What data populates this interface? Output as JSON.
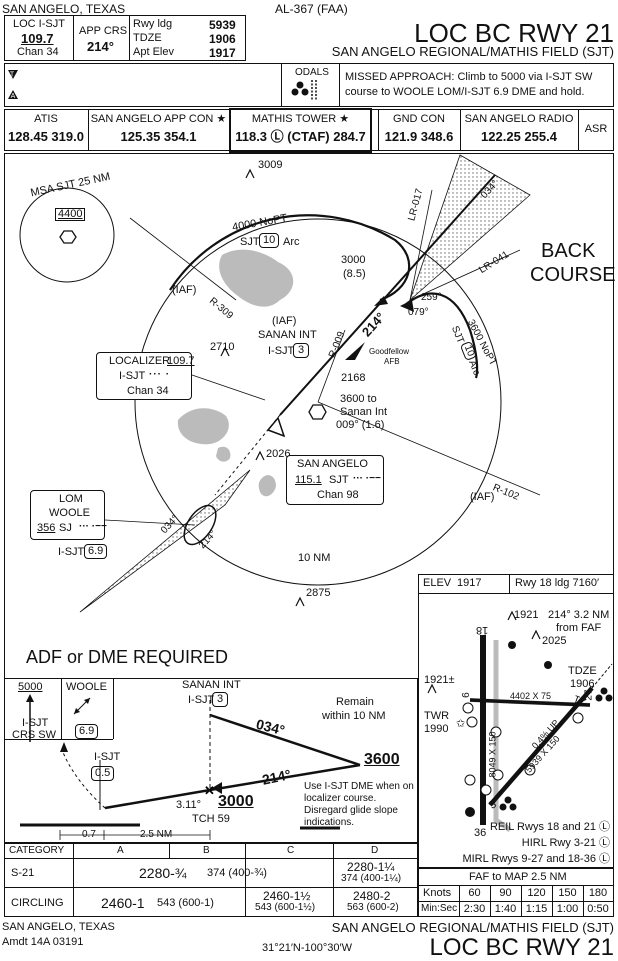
{
  "header": {
    "location": "SAN ANGELO, TEXAS",
    "chart_id": "AL-367 (FAA)",
    "title": "LOC BC RWY 21",
    "airport": "SAN ANGELO REGIONAL/MATHIS FIELD (SJT)"
  },
  "info_box": {
    "loc_label": "LOC I-SJT",
    "loc_freq": "109.7",
    "chan": "Chan 34",
    "app_crs_label": "APP CRS",
    "app_crs": "214°",
    "rwy_ldg_label": "Rwy ldg",
    "rwy_ldg": "5939",
    "tdze_label": "TDZE",
    "tdze": "1906",
    "apt_elev_label": "Apt Elev",
    "apt_elev": "1917"
  },
  "odals": "ODALS",
  "missed_approach": "MISSED APPROACH: Climb to 5000 via I-SJT SW course to WOOLE LOM/I-SJT 6.9 DME and hold.",
  "comms": [
    {
      "label": "ATIS",
      "value": "128.45  319.0"
    },
    {
      "label": "SAN ANGELO APP CON ★",
      "value": "125.35  354.1"
    },
    {
      "label": "MATHIS TOWER ★",
      "value": "118.3 Ⓛ (CTAF) 284.7"
    },
    {
      "label": "GND CON",
      "value": "121.9  348.6"
    },
    {
      "label": "SAN ANGELO RADIO",
      "value": "122.25  255.4"
    },
    {
      "label": "ASR",
      "value": ""
    }
  ],
  "plan": {
    "msa": "MSA SJT 25 NM",
    "msa_alt": "4400",
    "back_course": [
      "BACK",
      "COURSE"
    ],
    "obst_3009": "3009",
    "arc_nopt": "4000 NoPT",
    "arc_label_sjt": "SJT",
    "arc_label_dme": "10",
    "arc_label_arc": "Arc",
    "alt_3000": "3000",
    "dist_85": "(8.5)",
    "lr017": "LR-017",
    "lr041": "LR-041",
    "crs_034": "034°",
    "crs_259": "259°",
    "crs_079": "079°",
    "arc2_alt": "3600 NoPT",
    "arc2_sjt": "SJT",
    "arc2_dme": "10",
    "arc2_arc": "Arc",
    "iaf1": "(IAF)",
    "iaf2": "(IAF)",
    "iaf3": "(IAF)",
    "r309": "R-309",
    "r009": "R-009",
    "r102": "R-102",
    "crs_214": "214°",
    "sanan_int": "SANAN INT",
    "sanan_isjt": "I-SJT",
    "sanan_dme": "3",
    "obst_2710": "2710",
    "goodfellow": [
      "Goodfellow",
      "AFB"
    ],
    "obst_2168": "2168",
    "v_3600": [
      "3600 to",
      "Sanan Int",
      "009° (1.6)"
    ],
    "loc_box": {
      "title": "LOCALIZER",
      "freq": "109.7",
      "ident": "I-SJT",
      "chan": "Chan 34"
    },
    "obst_2026": "2026",
    "vor_box": {
      "name": "SAN ANGELO",
      "freq": "115.1",
      "ident": "SJT",
      "chan": "Chan 98"
    },
    "lom_box": {
      "l1": "LOM",
      "l2": "WOOLE",
      "freq": "356",
      "ident": "SJ"
    },
    "lom_crs_034": "034°",
    "lom_crs_214": "214°",
    "lom_isjt": "I-SJT",
    "lom_dme": "6.9",
    "ten_nm": "10 NM",
    "obst_2875": "2875",
    "adf": "ADF or DME REQUIRED"
  },
  "airport_diagram": {
    "elev_label": "ELEV",
    "elev": "1917",
    "rwy_ldg": "Rwy 18 ldg 7160′",
    "obst_1921": "1921",
    "fafnote": [
      "214° 3.2 NM",
      "from FAF"
    ],
    "obst_2025": "2025",
    "tdze_label": "TDZE",
    "tdze": "1906",
    "obst_1921b": "1921±",
    "rwy9": "9",
    "rwy27": "27",
    "rwy21": "21",
    "rwy3": "3",
    "rwy18": "18",
    "rwy36": "36",
    "dim_4402": "4402 X 75",
    "dim_8049": "8049 X 150",
    "dim_5939": "5939 X 150",
    "grade": "0.4% UP",
    "twr": "TWR",
    "twr_elev": "1990",
    "lights": [
      "REIL Rwys 18 and 21 Ⓛ",
      "HIRL Rwy 3-21 Ⓛ",
      "MIRL Rwys 9-27 and 18-36 Ⓛ"
    ]
  },
  "profile": {
    "hold_alt": "5000",
    "hold_isjt": "I-SJT",
    "hold_crs": "CRS SW",
    "woole": "WOOLE",
    "woole_dme": "6.9",
    "sanan": "SANAN INT",
    "sanan_isjt": "I-SJT",
    "sanan_dme": "3",
    "remain": [
      "Remain",
      "within 10 NM"
    ],
    "crs_034": "034°",
    "alt_3600": "3600",
    "crs_214": "214°",
    "map_isjt": "I-SJT",
    "map_dme": "0.5",
    "tch_angle": "3.11°",
    "tch": "TCH 59",
    "alt_3000": "3000",
    "note": [
      "Use I-SJT DME when on",
      "localizer course.",
      "Disregard glide slope",
      "indications."
    ],
    "dist_07": "0.7",
    "dist_25": "2.5 NM"
  },
  "minima": {
    "headers": [
      "CATEGORY",
      "A",
      "B",
      "C",
      "D"
    ],
    "s21_label": "S-21",
    "s21_abc": "2280-¾",
    "s21_abc_sub": "374 (400-¾)",
    "s21_d": "2280-1¼",
    "s21_d_sub": "374 (400-1¼)",
    "circ_label": "CIRCLING",
    "circ_ab": "2460-1",
    "circ_ab_sub": "543 (600-1)",
    "circ_c": "2460-1½",
    "circ_c_sub": "543 (600-1½)",
    "circ_d": "2480-2",
    "circ_d_sub": "563 (600-2)"
  },
  "timing": {
    "title": "FAF to MAP  2.5 NM",
    "knots_label": "Knots",
    "knots": [
      "60",
      "90",
      "120",
      "150",
      "180"
    ],
    "minsec_label": "Min:Sec",
    "times": [
      "2:30",
      "1:40",
      "1:15",
      "1:00",
      "0:50"
    ]
  },
  "footer": {
    "location": "SAN ANGELO, TEXAS",
    "amdt": "Amdt 14A   03191",
    "coords": "31°21′N-100°30′W",
    "airport": "SAN ANGELO REGIONAL/MATHIS FIELD (SJT)",
    "title": "LOC BC RWY 21"
  }
}
